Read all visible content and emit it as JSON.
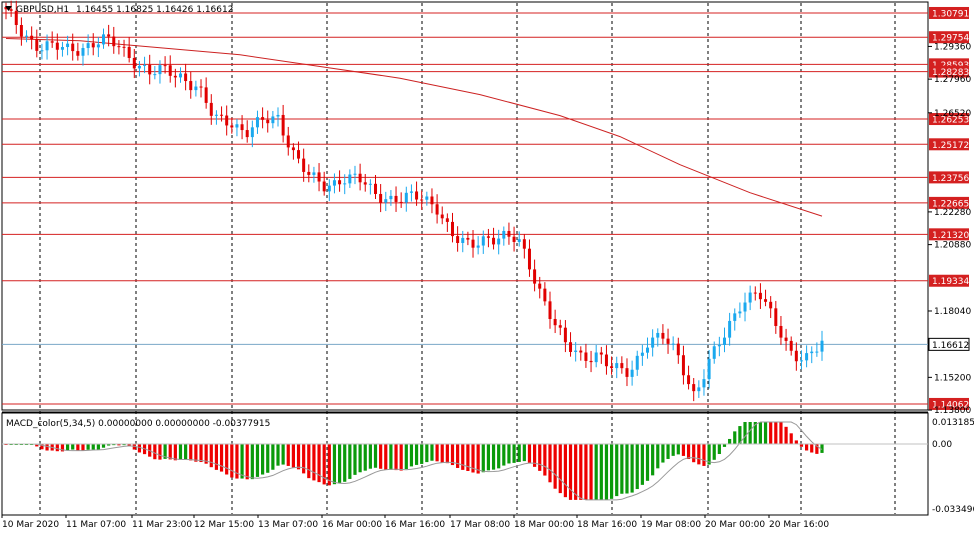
{
  "header": {
    "symbol_label": "GBPUSD,H1",
    "ohlc": "1.16455 1.16825 1.16426 1.16612",
    "dropdown_icon": "triangle-down-icon"
  },
  "indicator_label": "MACD_color(5,34,5) 0.00000000 0.00000000 -0.00377915",
  "colors": {
    "bull": "#1aa8ee",
    "bear": "#e00000",
    "hist_up": "#0a9a0a",
    "hist_down": "#ee0000",
    "levels": "#d42020",
    "ma": "#cc2222",
    "grid": "#000000"
  },
  "price_axis": {
    "ticks": [
      "1.29360",
      "1.27960",
      "1.26520",
      "1.22280",
      "1.20880",
      "1.18040",
      "1.15200",
      "1.13800"
    ],
    "current_price": "1.16612",
    "levels": [
      "1.30791",
      "1.29754",
      "1.28593",
      "1.28283",
      "1.26253",
      "1.25172",
      "1.23756",
      "1.22665",
      "1.21320",
      "1.19334",
      "1.14062"
    ]
  },
  "macd_axis": {
    "ticks": [
      "0.0131853",
      "0.00",
      "-0.0334961"
    ]
  },
  "time_axis": {
    "labels": [
      "10 Mar 2020",
      "11 Mar 07:00",
      "11 Mar 23:00",
      "12 Mar 15:00",
      "13 Mar 07:00",
      "16 Mar 00:00",
      "16 Mar 16:00",
      "17 Mar 08:00",
      "18 Mar 00:00",
      "18 Mar 16:00",
      "19 Mar 08:00",
      "20 Mar 00:00",
      "20 Mar 16:00"
    ]
  },
  "chart_data": {
    "type": "candlestick",
    "symbol": "GBPUSD",
    "timeframe": "H1",
    "last_ohlc": {
      "open": 1.16455,
      "high": 1.16825,
      "low": 1.16426,
      "close": 1.16612
    },
    "support_resistance_levels": [
      1.30791,
      1.29754,
      1.28593,
      1.28283,
      1.26253,
      1.25172,
      1.23756,
      1.22665,
      1.2132,
      1.19334,
      1.14062
    ],
    "close_path": [
      1.308,
      1.3,
      1.294,
      1.293,
      1.292,
      1.294,
      1.296,
      1.294,
      1.288,
      1.282,
      1.283,
      1.281,
      1.276,
      1.262,
      1.262,
      1.257,
      1.261,
      1.263,
      1.248,
      1.237,
      1.233,
      1.238,
      1.237,
      1.23,
      1.229,
      1.229,
      1.228,
      1.225,
      1.212,
      1.207,
      1.212,
      1.213,
      1.21,
      1.195,
      1.18,
      1.165,
      1.16,
      1.163,
      1.155,
      1.153,
      1.168,
      1.17,
      1.16,
      1.145,
      1.16,
      1.17,
      1.185,
      1.19,
      1.175,
      1.163,
      1.161,
      1.166
    ],
    "moving_average": [
      1.297,
      1.296,
      1.293,
      1.29,
      1.285,
      1.28,
      1.273,
      1.264,
      1.255,
      1.243,
      1.231,
      1.221
    ],
    "macd": {
      "label": "MACD_color(5,34,5)",
      "main": 0.0,
      "signal": 0.0,
      "histogram_last": -0.00377915,
      "range": [
        -0.0334961,
        0.0131853
      ]
    }
  }
}
